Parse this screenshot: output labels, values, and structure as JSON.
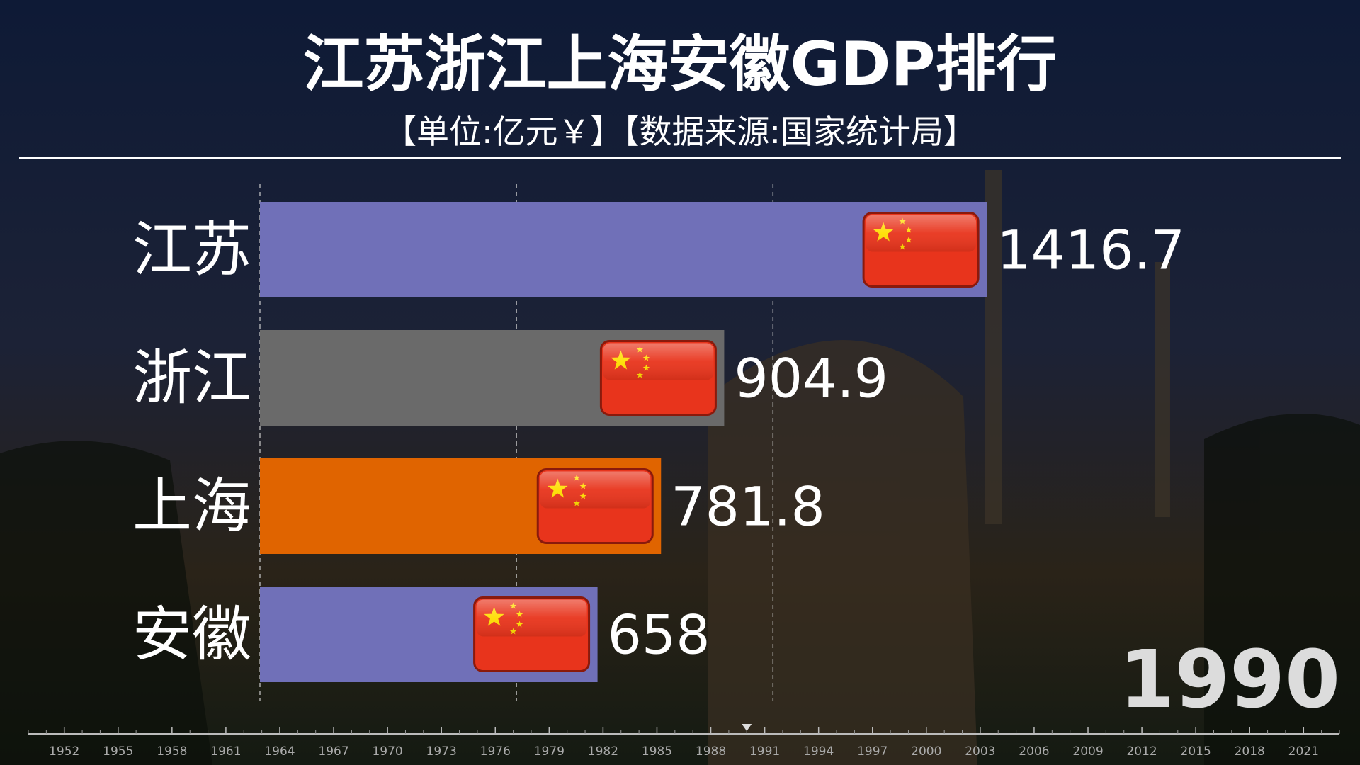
{
  "chart_data": {
    "type": "bar-race",
    "title": "江苏浙江上海安徽GDP排行",
    "subtitle": "【单位:亿元￥】【数据来源:国家统计局】",
    "categories": [
      "江苏",
      "浙江",
      "上海",
      "安徽"
    ],
    "series": [
      {
        "values": [
          1416.7,
          904.9,
          781.8,
          658
        ],
        "colors": [
          "#7070b8",
          "#6a6a6a",
          "#e06400",
          "#7070b8"
        ]
      }
    ],
    "xlim": [
      0,
      2100
    ],
    "xticks": [
      0,
      500,
      1000
    ],
    "grid": true,
    "year": "1990",
    "timeline": {
      "xlim": [
        1950,
        2023
      ],
      "current": 1990,
      "xticks": [
        1952,
        1955,
        1958,
        1961,
        1964,
        1967,
        1970,
        1973,
        1976,
        1979,
        1982,
        1985,
        1988,
        1991,
        1994,
        1997,
        2000,
        2003,
        2006,
        2009,
        2012,
        2015,
        2018,
        2021
      ]
    }
  }
}
